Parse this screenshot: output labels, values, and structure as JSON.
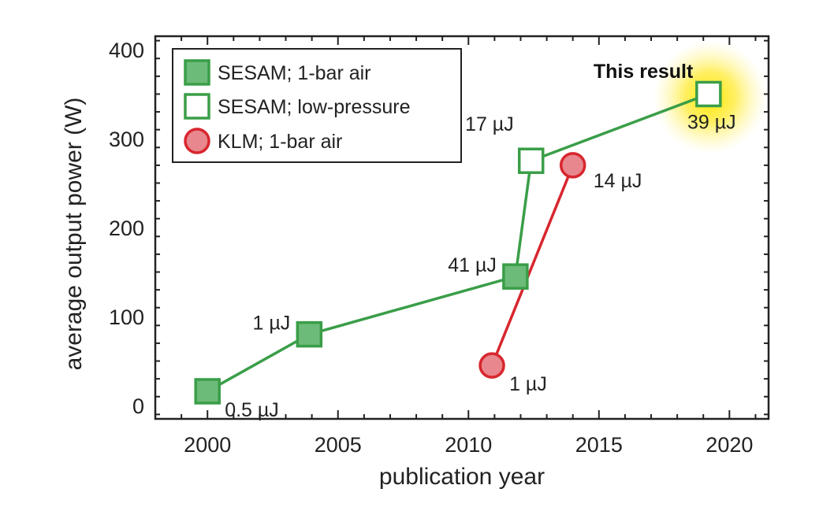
{
  "chart_data": {
    "type": "scatter",
    "xlabel": "publication year",
    "ylabel": "average output power (W)",
    "xlim": [
      1998,
      2021.5
    ],
    "ylim": [
      -15,
      415
    ],
    "xticks": [
      2000,
      2005,
      2010,
      2015,
      2020
    ],
    "yticks": [
      0,
      100,
      200,
      300,
      400
    ],
    "grid": false,
    "legend_position": "top-left",
    "series": [
      {
        "name": "SESAM; 1-bar air",
        "marker": "square-filled",
        "points": [
          {
            "x": 2000,
            "y": 16,
            "label": "0.5 µJ",
            "label_pos": "below-right"
          },
          {
            "x": 2003.9,
            "y": 80,
            "label": "1 µJ",
            "label_pos": "left"
          },
          {
            "x": 2011.8,
            "y": 145,
            "label": "41 µJ",
            "label_pos": "left"
          },
          {
            "x": 2012.4,
            "y": 275
          }
        ]
      },
      {
        "name": "SESAM; low-pressure",
        "marker": "square-open",
        "points": [
          {
            "x": 2012.4,
            "y": 275,
            "label": "17 µJ",
            "label_pos": "above-left"
          },
          {
            "x": 2019.2,
            "y": 350,
            "label": "39 µJ",
            "label_pos": "below"
          }
        ]
      },
      {
        "name": "KLM; 1-bar air",
        "marker": "circle-filled",
        "points": [
          {
            "x": 2010.9,
            "y": 45,
            "label": "1 µJ",
            "label_pos": "below-right"
          },
          {
            "x": 2014,
            "y": 270,
            "label": "14 µJ",
            "label_pos": "right"
          }
        ]
      }
    ],
    "annotations": [
      {
        "text": "This result",
        "x": 2016.7,
        "y": 368,
        "highlight": true
      }
    ],
    "colors": {
      "sesam": "#3a9e48",
      "sesam_fill": "#6dbb78",
      "klm": "#d8262e",
      "klm_fill": "#e8878d",
      "glow": "#ffe800"
    }
  }
}
